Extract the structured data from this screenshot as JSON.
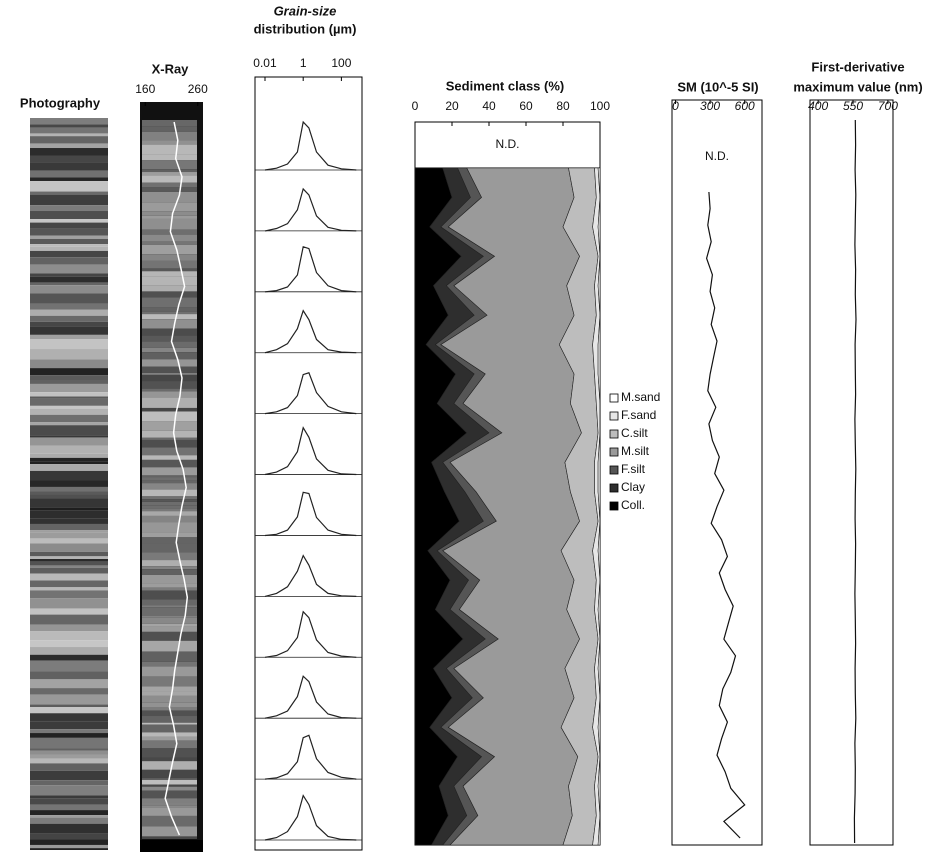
{
  "chart_data": [
    {
      "type": "image",
      "title": "Photography"
    },
    {
      "type": "line",
      "title": "X-Ray",
      "xlim": [
        150,
        270
      ],
      "xticks": [
        160,
        260
      ],
      "color": "#ffffff",
      "values": [
        215,
        222,
        218,
        230,
        225,
        212,
        208,
        220,
        228,
        235,
        224,
        216,
        210,
        222,
        230,
        226,
        218,
        214,
        220,
        232,
        238,
        230,
        224,
        219,
        226,
        234,
        240,
        236,
        228,
        222,
        216,
        212,
        206,
        214,
        220,
        212,
        205,
        198,
        210,
        225
      ]
    },
    {
      "type": "ridgeline",
      "title": "Grain-size",
      "subtitle": "distribution (µm)",
      "log_x": true,
      "xlim": [
        0.003,
        1200
      ],
      "xticks": [
        0.01,
        1,
        100
      ],
      "ylim": [
        0,
        10
      ],
      "color": "#222222",
      "x": [
        0.01,
        0.04,
        0.15,
        0.5,
        1,
        2,
        5,
        20,
        100,
        600
      ],
      "curves": [
        [
          0,
          0.3,
          1,
          3,
          8,
          7,
          3,
          0.8,
          0.2,
          0
        ],
        [
          0,
          0.4,
          1.2,
          3.5,
          7,
          6,
          2.5,
          0.6,
          0.1,
          0
        ],
        [
          0,
          0.2,
          0.8,
          2.8,
          7.5,
          7.2,
          3.2,
          1,
          0.2,
          0
        ],
        [
          0,
          0.5,
          1.5,
          4,
          7,
          5.5,
          2.2,
          0.5,
          0.1,
          0
        ],
        [
          0,
          0.3,
          1,
          3,
          6.5,
          6.8,
          3.5,
          1.2,
          0.3,
          0
        ],
        [
          0,
          0.4,
          1.3,
          3.8,
          7.8,
          6.2,
          2.6,
          0.7,
          0.1,
          0
        ],
        [
          0,
          0.2,
          0.9,
          3.1,
          7.2,
          7,
          3,
          0.9,
          0.2,
          0
        ],
        [
          0,
          0.5,
          1.6,
          4.2,
          6.8,
          5.2,
          2,
          0.5,
          0.1,
          0
        ],
        [
          0,
          0.3,
          1.1,
          3.3,
          7.6,
          6.6,
          2.9,
          0.8,
          0.2,
          0
        ],
        [
          0,
          0.4,
          1.2,
          3.6,
          7,
          6.1,
          2.7,
          0.7,
          0.1,
          0
        ],
        [
          0,
          0.2,
          0.9,
          2.9,
          6.9,
          7.3,
          3.4,
          1.1,
          0.3,
          0
        ],
        [
          0,
          0.4,
          1.4,
          3.9,
          7.4,
          5.9,
          2.4,
          0.6,
          0.1,
          0
        ]
      ]
    },
    {
      "type": "stacked_area",
      "title": "Sediment class (%)",
      "annotation": "N.D.",
      "xlim": [
        0,
        100
      ],
      "xticks": [
        0,
        20,
        40,
        60,
        80,
        100
      ],
      "legend": "right",
      "series": [
        {
          "name": "Coll.",
          "color": "#000000",
          "values": [
            15,
            20,
            8,
            25,
            10,
            18,
            6,
            22,
            12,
            28,
            9,
            16,
            24,
            7,
            19,
            11,
            26,
            10,
            20,
            8,
            23,
            13,
            18,
            9
          ]
        },
        {
          "name": "Clay",
          "color": "#2e2e2e",
          "values": [
            8,
            10,
            6,
            12,
            7,
            14,
            5,
            10,
            9,
            12,
            6,
            11,
            13,
            5,
            10,
            8,
            12,
            7,
            11,
            6,
            13,
            8,
            10,
            6
          ]
        },
        {
          "name": "F.silt",
          "color": "#555555",
          "values": [
            5,
            6,
            4,
            6,
            4,
            7,
            3,
            6,
            5,
            7,
            4,
            6,
            7,
            3,
            6,
            5,
            7,
            4,
            6,
            4,
            7,
            5,
            6,
            4
          ]
        },
        {
          "name": "M.silt",
          "color": "#9a9a9a",
          "values": [
            55,
            50,
            62,
            46,
            61,
            47,
            64,
            48,
            58,
            43,
            62,
            51,
            45,
            64,
            51,
            58,
            44,
            60,
            49,
            61,
            45,
            57,
            51,
            61
          ]
        },
        {
          "name": "C.silt",
          "color": "#bdbdbd",
          "values": [
            14,
            12,
            16,
            10,
            15,
            12,
            18,
            11,
            14,
            9,
            16,
            13,
            10,
            17,
            12,
            15,
            10,
            16,
            12,
            17,
            11,
            14,
            13,
            16
          ]
        },
        {
          "name": "F.sand",
          "color": "#e6e6e6",
          "values": [
            2,
            2,
            3,
            1,
            2,
            2,
            3,
            2,
            2,
            1,
            2,
            2,
            1,
            3,
            2,
            2,
            1,
            2,
            2,
            3,
            1,
            2,
            2,
            3
          ]
        },
        {
          "name": "M.sand",
          "color": "#ffffff",
          "values": [
            1,
            0,
            1,
            0,
            1,
            0,
            1,
            1,
            0,
            0,
            1,
            1,
            0,
            1,
            0,
            1,
            0,
            1,
            0,
            1,
            0,
            1,
            0,
            1
          ]
        }
      ]
    },
    {
      "type": "line",
      "title": "SM (10^-5 SI)",
      "annotation": "N.D.",
      "xlim": [
        -30,
        750
      ],
      "xticks": [
        0,
        300,
        600
      ],
      "color": "#111111",
      "values": [
        290,
        300,
        280,
        310,
        270,
        320,
        300,
        340,
        310,
        360,
        330,
        300,
        280,
        350,
        290,
        320,
        380,
        340,
        420,
        360,
        310,
        400,
        450,
        380,
        430,
        500,
        460,
        420,
        520,
        480,
        410,
        380,
        450,
        400,
        360,
        430,
        480,
        600,
        420,
        560
      ]
    },
    {
      "type": "line",
      "title": "First-derivative",
      "subtitle": "maximum value (nm)",
      "xlim": [
        365,
        722
      ],
      "xticks": [
        400,
        550,
        700
      ],
      "color": "#111111",
      "values": [
        560,
        561,
        559,
        562,
        560,
        558,
        561,
        560,
        563,
        559,
        560,
        561,
        558,
        560,
        562,
        560,
        559,
        561,
        560,
        558,
        560,
        561,
        559,
        560,
        562,
        558,
        560,
        559,
        556,
        557
      ]
    }
  ]
}
